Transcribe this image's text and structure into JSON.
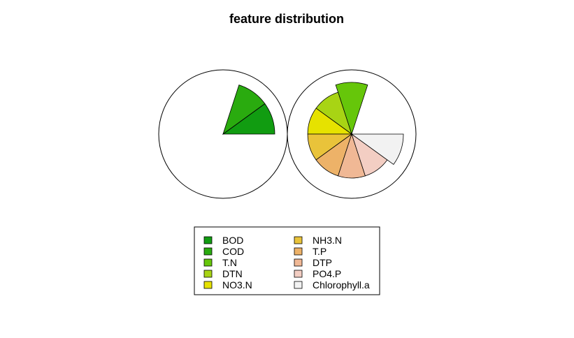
{
  "chart_data": {
    "type": "segment-star",
    "title": "feature distribution",
    "features": [
      {
        "name": "BOD",
        "color": "#119c11"
      },
      {
        "name": "COD",
        "color": "#2aab0f"
      },
      {
        "name": "T.N",
        "color": "#66c60a"
      },
      {
        "name": "DTN",
        "color": "#a8d414"
      },
      {
        "name": "NO3.N",
        "color": "#e6e200"
      },
      {
        "name": "NH3.N",
        "color": "#e9c33a"
      },
      {
        "name": "T.P",
        "color": "#edb268"
      },
      {
        "name": "DTP",
        "color": "#f0b895"
      },
      {
        "name": "PO4.P",
        "color": "#f3cec3"
      },
      {
        "name": "Chlorophyll.a",
        "color": "#f2f2f2"
      }
    ],
    "series": [
      {
        "values": [
          1.0,
          1.0,
          0,
          0,
          0,
          0,
          0,
          0,
          0,
          0
        ]
      },
      {
        "values": [
          0,
          0,
          1.0,
          0.85,
          0.85,
          0.85,
          0.85,
          0.85,
          0.85,
          1.0
        ]
      }
    ],
    "legend": {
      "position": "bottom",
      "columns": 2
    }
  }
}
